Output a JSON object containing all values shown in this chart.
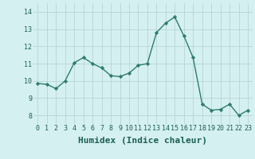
{
  "x": [
    0,
    1,
    2,
    3,
    4,
    5,
    6,
    7,
    8,
    9,
    10,
    11,
    12,
    13,
    14,
    15,
    16,
    17,
    18,
    19,
    20,
    21,
    22,
    23
  ],
  "y": [
    9.85,
    9.8,
    9.55,
    10.0,
    11.05,
    11.35,
    11.0,
    10.75,
    10.3,
    10.25,
    10.45,
    10.9,
    11.0,
    12.8,
    13.35,
    13.7,
    12.6,
    11.35,
    8.65,
    8.3,
    8.35,
    8.65,
    8.0,
    8.3
  ],
  "line_color": "#2e7d6e",
  "marker": "D",
  "markersize": 2.2,
  "linewidth": 1.0,
  "bg_color": "#d5f0f0",
  "grid_color": "#b8d4d4",
  "xlabel": "Humidex (Indice chaleur)",
  "xlabel_fontsize": 8,
  "ylim": [
    7.5,
    14.5
  ],
  "xlim": [
    -0.5,
    23.5
  ],
  "yticks": [
    8,
    9,
    10,
    11,
    12,
    13,
    14
  ],
  "xticks": [
    0,
    1,
    2,
    3,
    4,
    5,
    6,
    7,
    8,
    9,
    10,
    11,
    12,
    13,
    14,
    15,
    16,
    17,
    18,
    19,
    20,
    21,
    22,
    23
  ],
  "tick_fontsize": 6.0,
  "text_color": "#1a5f55"
}
